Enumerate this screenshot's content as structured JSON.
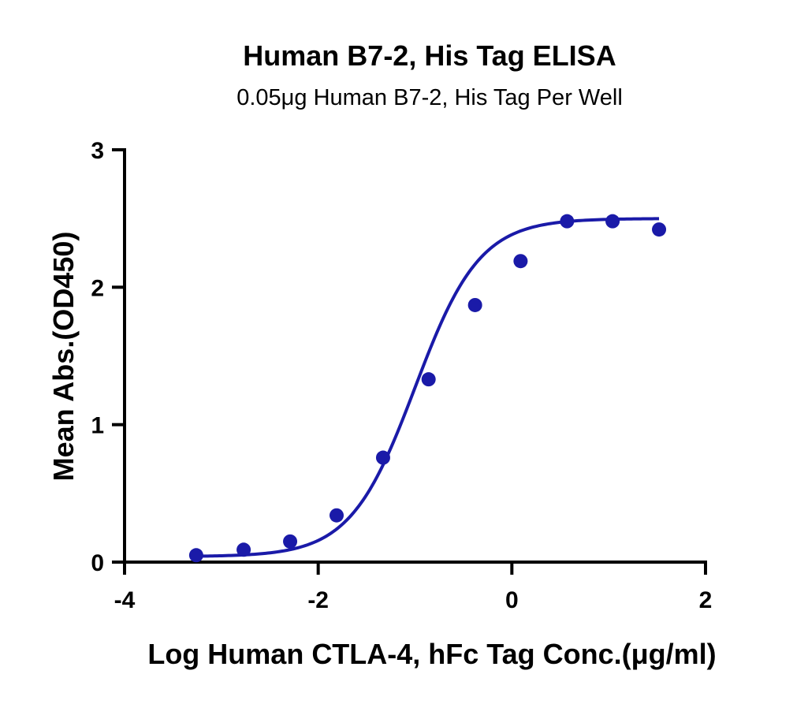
{
  "chart_data": {
    "type": "scatter",
    "title": "Human B7-2, His Tag ELISA",
    "subtitle": "0.05μg Human B7-2, His Tag Per Well",
    "xlabel": "Log Human CTLA-4, hFc Tag Conc.(μg/ml)",
    "ylabel": "Mean Abs.(OD450)",
    "xlim": [
      -4,
      2
    ],
    "ylim": [
      0,
      3
    ],
    "xticks": [
      -4,
      -2,
      0,
      2
    ],
    "yticks": [
      0,
      1,
      2,
      3
    ],
    "grid": false,
    "colors": {
      "series": "#1a1aa8"
    },
    "series": [
      {
        "x": [
          -3.26,
          -2.77,
          -2.29,
          -1.81,
          -1.33,
          -0.86,
          -0.38,
          0.09,
          0.57,
          1.04,
          1.52
        ],
        "y": [
          0.05,
          0.09,
          0.15,
          0.34,
          0.76,
          1.33,
          1.87,
          2.19,
          2.48,
          2.48,
          2.42
        ]
      }
    ],
    "fit": {
      "model": "four-parameter logistic",
      "bottom": 0.04,
      "top": 2.5,
      "logEC50": -1.0,
      "hillslope": 1.3
    }
  }
}
